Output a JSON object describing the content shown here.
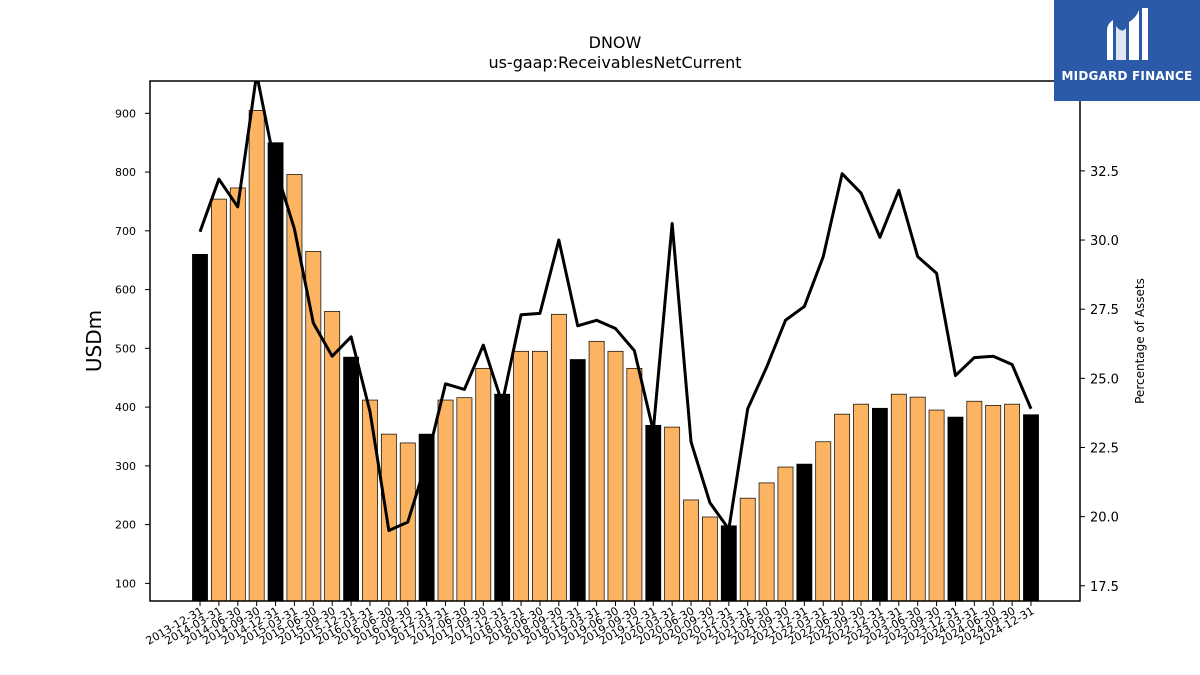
{
  "chart_data": {
    "type": "bar",
    "title": "DNOW",
    "subtitle": "us-gaap:ReceivablesNetCurrent",
    "ylabel": "USDm",
    "y2label": "Percentage of Assets",
    "ylim": [
      70,
      955
    ],
    "y2lim": [
      16.95,
      35.75
    ],
    "yticks": [
      100,
      200,
      300,
      400,
      500,
      600,
      700,
      800,
      900
    ],
    "y2ticks": [
      17.5,
      20.0,
      22.5,
      25.0,
      27.5,
      30.0,
      32.5
    ],
    "categories": [
      "2013-12-31",
      "2014-03-31",
      "2014-06-30",
      "2014-09-30",
      "2014-12-31",
      "2015-03-31",
      "2015-06-30",
      "2015-09-30",
      "2015-12-31",
      "2016-03-31",
      "2016-06-30",
      "2016-09-30",
      "2016-12-31",
      "2017-03-31",
      "2017-06-30",
      "2017-09-30",
      "2017-12-31",
      "2018-03-31",
      "2018-06-30",
      "2018-09-30",
      "2018-12-31",
      "2019-03-31",
      "2019-06-30",
      "2019-09-30",
      "2019-12-31",
      "2020-03-31",
      "2020-06-30",
      "2020-09-30",
      "2020-12-31",
      "2021-03-31",
      "2021-06-30",
      "2021-09-30",
      "2021-12-31",
      "2022-03-31",
      "2022-06-30",
      "2022-09-30",
      "2022-12-31",
      "2023-03-31",
      "2023-06-30",
      "2023-09-30",
      "2023-12-31",
      "2024-03-31",
      "2024-06-30",
      "2024-09-30",
      "2024-12-31"
    ],
    "series": [
      {
        "values": [
          660,
          754,
          773,
          905,
          850,
          796,
          665,
          563,
          485,
          412,
          354,
          339,
          354,
          412,
          416,
          466,
          422,
          495,
          495,
          558,
          481,
          512,
          495,
          466,
          369,
          366,
          242,
          213,
          198,
          245,
          271,
          298,
          303,
          341,
          388,
          405,
          398,
          422,
          417,
          395,
          383,
          410,
          403,
          405,
          387
        ],
        "year_end_color": "#000000",
        "quarter_color": "#fdb462"
      },
      {
        "axis": "right",
        "values": [
          30.3,
          32.2,
          31.2,
          36.0,
          32.6,
          30.4,
          27.0,
          25.8,
          26.5,
          23.8,
          19.5,
          19.8,
          22.0,
          24.8,
          24.6,
          26.2,
          24.1,
          27.3,
          27.35,
          30.0,
          26.9,
          27.1,
          26.8,
          26.0,
          23.1,
          30.6,
          22.7,
          20.5,
          19.55,
          23.9,
          25.4,
          27.1,
          27.6,
          29.4,
          32.4,
          31.7,
          30.1,
          31.8,
          29.4,
          28.8,
          25.1,
          25.75,
          25.8,
          25.5,
          23.9
        ],
        "color": "#000000"
      }
    ]
  },
  "logo": {
    "text": "MIDGARD FINANCE"
  }
}
